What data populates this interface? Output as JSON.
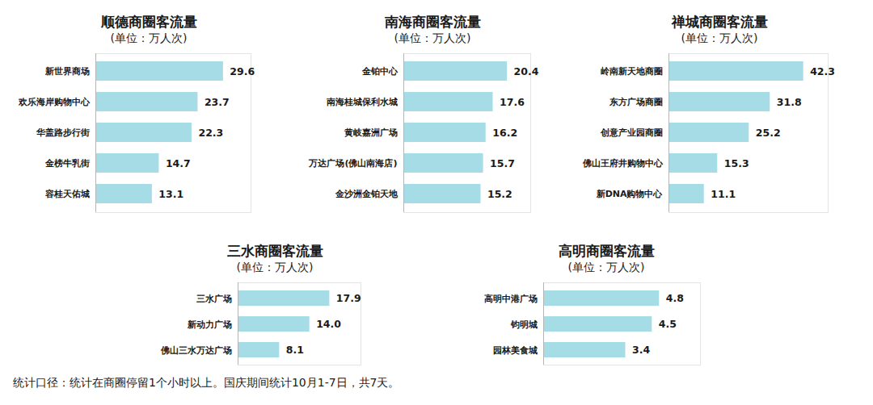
{
  "chart_data": [
    {
      "type": "bar",
      "title": "顺德商圈客流量",
      "subtitle": "(单位：万人次)",
      "categories": [
        "新世界商场",
        "欢乐海岸购物中心",
        "华盖路步行街",
        "金榜牛乳街",
        "容桂天佑城"
      ],
      "values": [
        29.6,
        23.7,
        22.3,
        14.7,
        13.1
      ],
      "color": "#a6dce6",
      "xlim": [
        0,
        36
      ],
      "orientation": "horizontal",
      "data_labels": true,
      "tick_labels": "y"
    },
    {
      "type": "bar",
      "title": "南海商圈客流量",
      "subtitle": "(单位：万人次)",
      "categories": [
        "金铂中心",
        "南海桂城保利水城",
        "黄岐嘉洲广场",
        "万达广场(佛山南海店)",
        "金沙洲金铂天地"
      ],
      "values": [
        20.4,
        17.6,
        16.2,
        15.7,
        15.2
      ],
      "color": "#a6dce6",
      "xlim": [
        0,
        25
      ],
      "orientation": "horizontal",
      "data_labels": true,
      "tick_labels": "y"
    },
    {
      "type": "bar",
      "title": "禅城商圈客流量",
      "subtitle": "(单位：万人次)",
      "categories": [
        "岭南新天地商圈",
        "东方广场商圈",
        "创意产业园商圈",
        "佛山王府井购物中心",
        "新DNA购物中心"
      ],
      "values": [
        42.3,
        31.8,
        25.2,
        15.3,
        11.1
      ],
      "color": "#a6dce6",
      "xlim": [
        0,
        50
      ],
      "orientation": "horizontal",
      "data_labels": true,
      "tick_labels": "y"
    },
    {
      "type": "bar",
      "title": "三水商圈客流量",
      "subtitle": "(单位：万人次)",
      "categories": [
        "三水广场",
        "新动力广场",
        "佛山三水万达广场"
      ],
      "values": [
        17.9,
        14.0,
        8.1
      ],
      "value_labels": [
        "17.9",
        "14.0",
        "8.1"
      ],
      "color": "#a6dce6",
      "xlim": [
        0,
        24
      ],
      "orientation": "horizontal",
      "data_labels": true,
      "tick_labels": "y"
    },
    {
      "type": "bar",
      "title": "高明商圈客流量",
      "subtitle": "(单位：万人次)",
      "categories": [
        "高明中港广场",
        "钧明城",
        "园林美食城"
      ],
      "values": [
        4.8,
        4.5,
        3.4
      ],
      "color": "#a6dce6",
      "xlim": [
        0,
        6.5
      ],
      "orientation": "horizontal",
      "data_labels": true,
      "tick_labels": "y"
    }
  ],
  "caption": "统计口径：统计在商圈停留1个小时以上。国庆期间统计10月1-7日，共7天。"
}
